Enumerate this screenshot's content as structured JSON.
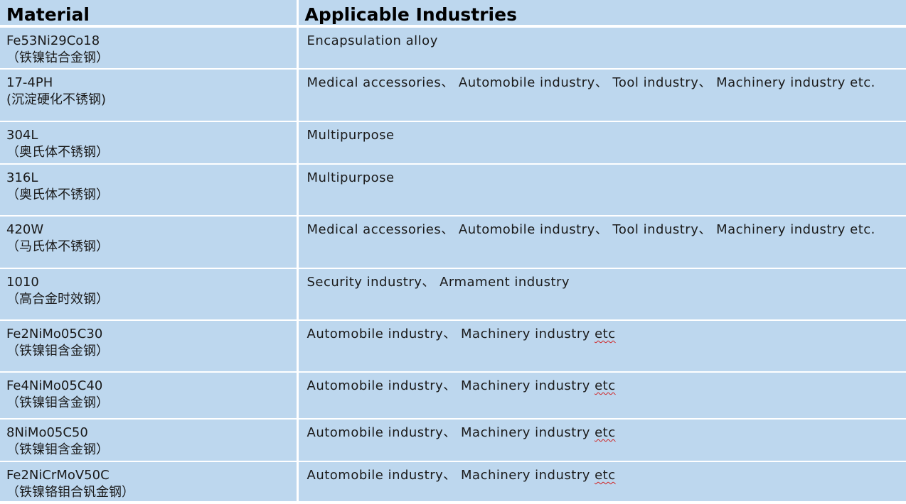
{
  "table": {
    "headers": [
      "Material",
      "Applicable Industries"
    ],
    "rows": [
      {
        "material": "Fe53Ni29Co18",
        "chinese": "（铁镍钴合金钢）",
        "industries": "Encapsulation alloy",
        "etc": ""
      },
      {
        "material": "17-4PH",
        "chinese": "(沉淀硬化不锈钢)",
        "industries": "Medical accessories、 Automobile industry、 Tool  industry、  Machinery  industry etc.",
        "etc": ""
      },
      {
        "material": "304L",
        "chinese": "（奥氏体不锈钢）",
        "industries": "Multipurpose",
        "etc": ""
      },
      {
        "material": "316L",
        "chinese": "（奥氏体不锈钢）",
        "industries": "Multipurpose",
        "etc": ""
      },
      {
        "material": "420W",
        "chinese": "（马氏体不锈钢）",
        "industries": "Medical accessories、 Automobile industry、 Tool  industry、  Machinery  industry etc.",
        "etc": ""
      },
      {
        "material": "1010",
        "chinese": "（高合金时效钢）",
        "industries": "Security  industry、 Armament  industry",
        "etc": ""
      },
      {
        "material": "Fe2NiMo05C30",
        "chinese": "（铁镍钼含金钢）",
        "industries": "Automobile industry、 Machinery  industry ",
        "etc": "etc"
      },
      {
        "material": "Fe4NiMo05C40",
        "chinese": "（铁镍钼含金钢）",
        "industries": "Automobile industry、 Machinery  industry ",
        "etc": "etc"
      },
      {
        "material": "8NiMo05C50",
        "chinese": "（铁镍钼含金钢）",
        "industries": "Automobile industry、 Machinery  industry ",
        "etc": "etc"
      },
      {
        "material": " Fe2NiCrMoV50C",
        "chinese": "（铁镍铬钼合钒金钢）",
        "industries": "Automobile industry、 Machinery  industry ",
        "etc": "etc"
      }
    ]
  },
  "colors": {
    "cell_background": "#bdd7ee",
    "grid_lines": "#ffffff",
    "spellcheck_underline": "#d02020"
  }
}
